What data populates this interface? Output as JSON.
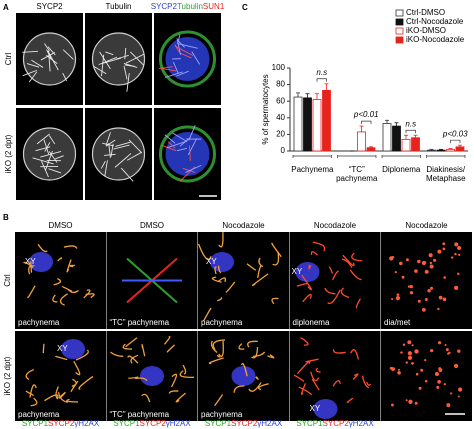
{
  "panel_labels": [
    "A",
    "B",
    "C"
  ],
  "panel_a": {
    "columns": [
      "SYCP2",
      "Tubulin"
    ],
    "merge": [
      "SYCP2",
      "Tubulin",
      "SUN1"
    ],
    "rows": [
      "Ctrl",
      "iKO (2 dpt)"
    ]
  },
  "panel_b": {
    "columns": [
      "DMSO",
      "DMSO",
      "Nocodazole",
      "Nocodazole",
      "Nocodazole"
    ],
    "rows": [
      "Ctrl",
      "iKO (2 dpt)"
    ],
    "stages": [
      "pachynema",
      "“TC” pachynema",
      "pachynema",
      "diplonema",
      "dia/met"
    ],
    "xy": "XY",
    "stains": [
      "SYCP1",
      "SYCP2",
      "γH2AX"
    ]
  },
  "chart_data": {
    "type": "bar",
    "y_label": "% of spermatocytes",
    "categories": [
      "Pachynema",
      "“TC” pachynema",
      "Diplonema",
      "Diakinesis/ Metaphase"
    ],
    "series": [
      {
        "name": "Ctrl-DMSO",
        "color": "#333333",
        "fill": "#ffffff",
        "values": [
          65,
          0,
          33,
          1
        ],
        "errors": [
          5,
          0,
          4,
          1
        ]
      },
      {
        "name": "Ctrl-Nocodazole",
        "color": "#111111",
        "fill": "#111111",
        "values": [
          64,
          0,
          30,
          1
        ],
        "errors": [
          5,
          0,
          4,
          1
        ]
      },
      {
        "name": "iKO-DMSO",
        "color": "#e8231e",
        "fill": "#ffffff",
        "values": [
          62,
          23,
          14,
          2
        ],
        "errors": [
          7,
          7,
          5,
          1
        ]
      },
      {
        "name": "iKO-Nocodazole",
        "color": "#e8231e",
        "fill": "#e8231e",
        "values": [
          73,
          4,
          16,
          5
        ],
        "errors": [
          8,
          1,
          3,
          2
        ]
      }
    ],
    "annotations": [
      "n.s",
      "p<0.01",
      "n.s",
      "p<0.03"
    ],
    "ylim": [
      0,
      100
    ],
    "yticks": [
      0,
      20,
      40,
      60,
      80,
      100
    ],
    "legend": "top-right"
  }
}
